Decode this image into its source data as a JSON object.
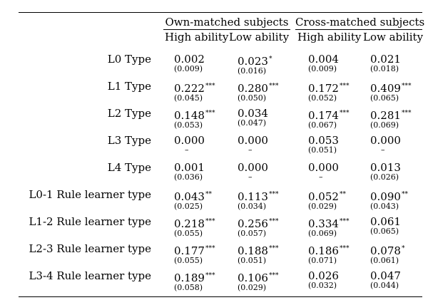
{
  "table": {
    "groups": [
      "Own-matched subjects",
      "Cross-matched subjects"
    ],
    "columns": [
      "High ability",
      "Low ability",
      "High ability",
      "Low ability"
    ],
    "rows": [
      {
        "label": "L0 Type",
        "cells": [
          {
            "coef": "0.002",
            "stars": "",
            "se": "(0.009)"
          },
          {
            "coef": "0.023",
            "stars": "*",
            "se": "(0.016)"
          },
          {
            "coef": "0.004",
            "stars": "",
            "se": "(0.009)"
          },
          {
            "coef": "0.021",
            "stars": "",
            "se": "(0.018)"
          }
        ]
      },
      {
        "label": "L1 Type",
        "cells": [
          {
            "coef": "0.222",
            "stars": "***",
            "se": "(0.045)"
          },
          {
            "coef": "0.280",
            "stars": "***",
            "se": "(0.050)"
          },
          {
            "coef": "0.172",
            "stars": "***",
            "se": "(0.052)"
          },
          {
            "coef": "0.409",
            "stars": "***",
            "se": "(0.065)"
          }
        ]
      },
      {
        "label": "L2 Type",
        "cells": [
          {
            "coef": "0.148",
            "stars": "***",
            "se": "(0.053)"
          },
          {
            "coef": "0.034",
            "stars": "",
            "se": "(0.047)"
          },
          {
            "coef": "0.174",
            "stars": "***",
            "se": "(0.067)"
          },
          {
            "coef": "0.281",
            "stars": "***",
            "se": "(0.069)"
          }
        ]
      },
      {
        "label": "L3 Type",
        "cells": [
          {
            "coef": "0.000",
            "stars": "",
            "se": "–"
          },
          {
            "coef": "0.000",
            "stars": "",
            "se": "–"
          },
          {
            "coef": "0.053",
            "stars": "",
            "se": "(0.051)"
          },
          {
            "coef": "0.000",
            "stars": "",
            "se": "–"
          }
        ]
      },
      {
        "label": "L4 Type",
        "cells": [
          {
            "coef": "0.001",
            "stars": "",
            "se": "(0.036)"
          },
          {
            "coef": "0.000",
            "stars": "",
            "se": "–"
          },
          {
            "coef": "0.000",
            "stars": "",
            "se": "–"
          },
          {
            "coef": "0.013",
            "stars": "",
            "se": "(0.026)"
          }
        ]
      },
      {
        "label": "L0-1 Rule learner type",
        "cells": [
          {
            "coef": "0.043",
            "stars": "**",
            "se": "(0.025)"
          },
          {
            "coef": "0.113",
            "stars": "***",
            "se": "(0.034)"
          },
          {
            "coef": "0.052",
            "stars": "**",
            "se": "(0.029)"
          },
          {
            "coef": "0.090",
            "stars": "**",
            "se": "(0.043)"
          }
        ]
      },
      {
        "label": "L1-2 Rule learner type",
        "cells": [
          {
            "coef": "0.218",
            "stars": "***",
            "se": "(0.055)"
          },
          {
            "coef": "0.256",
            "stars": "***",
            "se": "(0.057)"
          },
          {
            "coef": "0.334",
            "stars": "***",
            "se": "(0.069)"
          },
          {
            "coef": "0.061",
            "stars": "",
            "se": "(0.065)"
          }
        ]
      },
      {
        "label": "L2-3 Rule learner type",
        "cells": [
          {
            "coef": "0.177",
            "stars": "***",
            "se": "(0.055)"
          },
          {
            "coef": "0.188",
            "stars": "***",
            "se": "(0.051)"
          },
          {
            "coef": "0.186",
            "stars": "***",
            "se": "(0.071)"
          },
          {
            "coef": "0.078",
            "stars": "*",
            "se": "(0.061)"
          }
        ]
      },
      {
        "label": "L3-4 Rule learner type",
        "cells": [
          {
            "coef": "0.189",
            "stars": "***",
            "se": "(0.058)"
          },
          {
            "coef": "0.106",
            "stars": "***",
            "se": "(0.029)"
          },
          {
            "coef": "0.026",
            "stars": "",
            "se": "(0.032)"
          },
          {
            "coef": "0.047",
            "stars": "",
            "se": "(0.044)"
          }
        ]
      }
    ]
  }
}
